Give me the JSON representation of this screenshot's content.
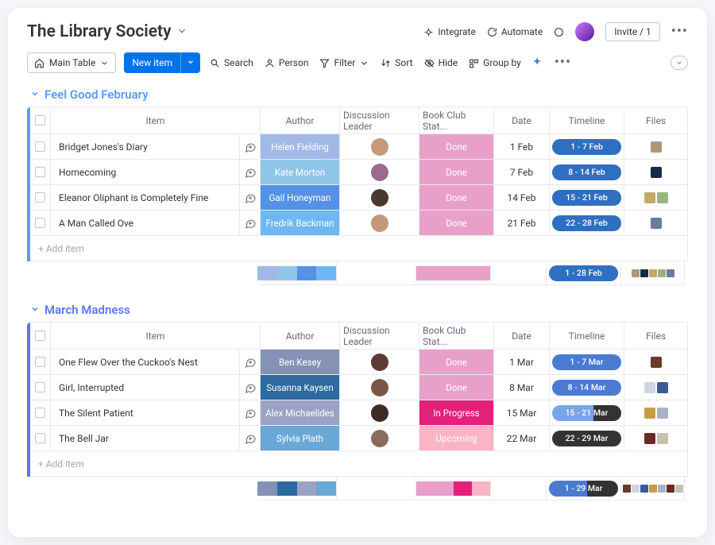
{
  "board": {
    "title": "The Library Society"
  },
  "top_actions": {
    "integrate": "Integrate",
    "automate": "Automate",
    "invite": "Invite / 1"
  },
  "toolbar": {
    "view": "Main Table",
    "new_item": "New item",
    "search": "Search",
    "person": "Person",
    "filter": "Filter",
    "sort": "Sort",
    "hide": "Hide",
    "group_by": "Group by"
  },
  "columns": {
    "item": "Item",
    "author": "Author",
    "discussion_leader": "Discussion Leader",
    "status": "Book Club Stat...",
    "date": "Date",
    "timeline": "Timeline",
    "files": "Files"
  },
  "add_item_label": "+ Add item",
  "status_colors": {
    "Done": "#e8a0c8",
    "In Progress": "#e2217b",
    "Upcoming": "#fcb3c6"
  },
  "groups": [
    {
      "name": "Feel Good February",
      "color": "#579bfc",
      "items": [
        {
          "title": "Bridget Jones's Diary",
          "author": "Helen Fielding",
          "author_color": "#a1b9e6",
          "status": "Done",
          "date": "1 Feb",
          "timeline": "1 - 7 Feb",
          "timeline_bg": "#2f6fc0",
          "avatar": "#c49a7a",
          "files": [
            "#b19576"
          ]
        },
        {
          "title": "Homecoming",
          "author": "Kate Morton",
          "author_color": "#8fc6e8",
          "status": "Done",
          "date": "7 Feb",
          "timeline": "8 - 14 Feb",
          "timeline_bg": "#2f6fc0",
          "avatar": "#9a6b8e",
          "files": [
            "#1b2a4a"
          ]
        },
        {
          "title": "Eleanor Oliphant is Completely Fine",
          "author": "Gail Honeyman",
          "author_color": "#5591e6",
          "status": "Done",
          "date": "14 Feb",
          "timeline": "15 - 21 Feb",
          "timeline_bg": "#2f6fc0",
          "avatar": "#4a372f",
          "files": [
            "#c4a968",
            "#9bb57e"
          ]
        },
        {
          "title": "A Man Called Ove",
          "author": "Fredrik Backman",
          "author_color": "#6fb7f2",
          "status": "Done",
          "date": "21 Feb",
          "timeline": "22 - 28 Feb",
          "timeline_bg": "#2f6fc0",
          "avatar": "#c2977b",
          "files": [
            "#6a7aa0"
          ]
        }
      ],
      "summary": {
        "author_swatches": [
          "#a1b9e6",
          "#8fc6e8",
          "#5591e6",
          "#6fb7f2"
        ],
        "status_swatch": "#e8a0c8",
        "timeline": "1 - 28 Feb",
        "timeline_bg": "#2f6fc0",
        "thumbs": [
          "#b19576",
          "#1b2a4a",
          "#c4a968",
          "#9bb57e",
          "#6a7aa0"
        ]
      }
    },
    {
      "name": "March Madness",
      "color": "#5b76f7",
      "items": [
        {
          "title": "One Flew Over the Cuckoo's Nest",
          "author": "Ben Kesey",
          "author_color": "#8592b5",
          "status": "Done",
          "date": "1 Mar",
          "timeline": "1 - 7 Mar",
          "timeline_bg": "#4a7bd1",
          "avatar": "#5e3a32",
          "files": [
            "#6a3a2a"
          ]
        },
        {
          "title": "Girl, Interrupted",
          "author": "Susanna Kaysen",
          "author_color": "#2c6aa0",
          "status": "Done",
          "date": "8 Mar",
          "timeline": "8 - 14 Mar",
          "timeline_bg": "#4a7bd1",
          "avatar": "#7a5648",
          "files": [
            "#d0d4e0",
            "#3a5a9a"
          ]
        },
        {
          "title": "The Silent Patient",
          "author": "Alex Michaelides",
          "author_color": "#9aa3c4",
          "status": "In Progress",
          "date": "15 Mar",
          "timeline": "15 - 21 Mar",
          "timeline_bg": "linear-gradient(90deg,#7aa4e6 60%,#333 60%)",
          "avatar": "#3d2a22",
          "files": [
            "#c79a4a",
            "#a8b4c6"
          ]
        },
        {
          "title": "The Bell Jar",
          "author": "Sylvia Plath",
          "author_color": "#6aa8d8",
          "status": "Upcoming",
          "date": "22 Mar",
          "timeline": "22 - 29 Mar",
          "timeline_bg": "#333333",
          "avatar": "#8a6b5c",
          "files": [
            "#6a2a2a",
            "#c8c0b0"
          ]
        }
      ],
      "summary": {
        "author_swatches": [
          "#8592b5",
          "#2c6aa0",
          "#9aa3c4",
          "#6aa8d8"
        ],
        "status_swatches": [
          "#e8a0c8",
          "#e8a0c8",
          "#e2217b",
          "#fcb3c6"
        ],
        "timeline": "1 - 29 Mar",
        "timeline_bg": "linear-gradient(90deg,#4a7bd1 55%,#333 55%)",
        "thumbs": [
          "#6a3a2a",
          "#d0d4e0",
          "#3a5a9a",
          "#c79a4a",
          "#a8b4c6",
          "#6a2a2a",
          "#c8c0b0"
        ]
      }
    }
  ]
}
